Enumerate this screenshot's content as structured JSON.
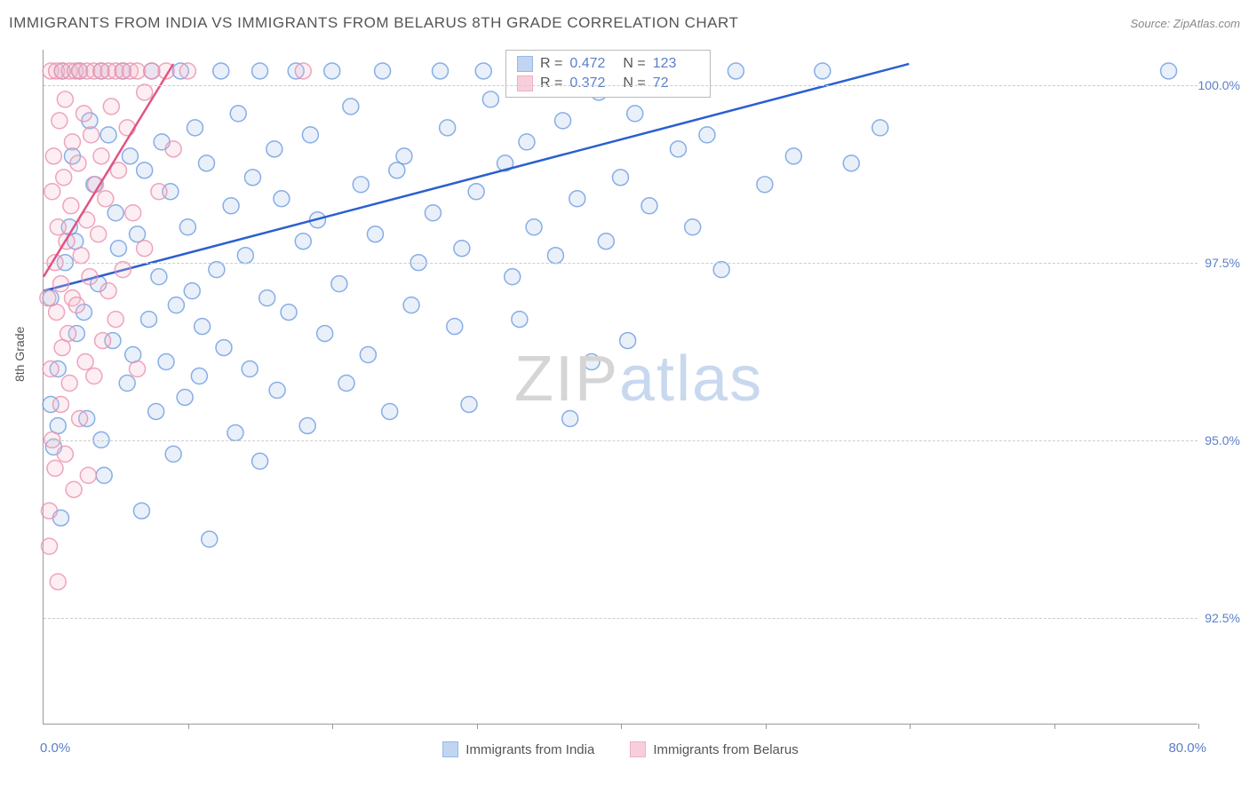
{
  "title": "IMMIGRANTS FROM INDIA VS IMMIGRANTS FROM BELARUS 8TH GRADE CORRELATION CHART",
  "source": "Source: ZipAtlas.com",
  "y_axis_label": "8th Grade",
  "watermark_zip": "ZIP",
  "watermark_atlas": "atlas",
  "chart": {
    "type": "scatter",
    "background_color": "#ffffff",
    "grid_color": "#cccccc",
    "axis_color": "#999999",
    "xlim": [
      0,
      80
    ],
    "ylim": [
      91.0,
      100.5
    ],
    "x_min_label": "0.0%",
    "x_max_label": "80.0%",
    "x_tick_positions": [
      0,
      10,
      20,
      30,
      40,
      50,
      60,
      70,
      80
    ],
    "y_ticks": [
      {
        "value": 92.5,
        "label": "92.5%"
      },
      {
        "value": 95.0,
        "label": "95.0%"
      },
      {
        "value": 97.5,
        "label": "97.5%"
      },
      {
        "value": 100.0,
        "label": "100.0%"
      }
    ],
    "marker_radius": 9,
    "marker_fill_opacity": 0.25,
    "marker_stroke_opacity": 0.8,
    "series": [
      {
        "name": "Immigrants from India",
        "color_fill": "#a8c4ec",
        "color_stroke": "#6b9be0",
        "trend_color": "#2a5fd0",
        "trend_width": 2.5,
        "trend": {
          "x1": 0,
          "y1": 97.1,
          "x2": 60,
          "y2": 100.3
        },
        "stats": {
          "R": "0.472",
          "N": "123"
        },
        "points": [
          [
            0.5,
            97.0
          ],
          [
            0.5,
            95.5
          ],
          [
            0.7,
            94.9
          ],
          [
            1.0,
            96.0
          ],
          [
            1.0,
            95.2
          ],
          [
            1.2,
            93.9
          ],
          [
            1.3,
            100.2
          ],
          [
            1.5,
            97.5
          ],
          [
            1.8,
            98.0
          ],
          [
            2.0,
            99.0
          ],
          [
            2.2,
            97.8
          ],
          [
            2.3,
            96.5
          ],
          [
            2.5,
            100.2
          ],
          [
            2.8,
            96.8
          ],
          [
            3.0,
            95.3
          ],
          [
            3.2,
            99.5
          ],
          [
            3.5,
            98.6
          ],
          [
            3.8,
            97.2
          ],
          [
            4.0,
            100.2
          ],
          [
            4.0,
            95.0
          ],
          [
            4.2,
            94.5
          ],
          [
            4.5,
            99.3
          ],
          [
            4.8,
            96.4
          ],
          [
            5.0,
            98.2
          ],
          [
            5.2,
            97.7
          ],
          [
            5.5,
            100.2
          ],
          [
            5.8,
            95.8
          ],
          [
            6.0,
            99.0
          ],
          [
            6.2,
            96.2
          ],
          [
            6.5,
            97.9
          ],
          [
            6.8,
            94.0
          ],
          [
            7.0,
            98.8
          ],
          [
            7.3,
            96.7
          ],
          [
            7.5,
            100.2
          ],
          [
            7.8,
            95.4
          ],
          [
            8.0,
            97.3
          ],
          [
            8.2,
            99.2
          ],
          [
            8.5,
            96.1
          ],
          [
            8.8,
            98.5
          ],
          [
            9.0,
            94.8
          ],
          [
            9.2,
            96.9
          ],
          [
            9.5,
            100.2
          ],
          [
            9.8,
            95.6
          ],
          [
            10.0,
            98.0
          ],
          [
            10.3,
            97.1
          ],
          [
            10.5,
            99.4
          ],
          [
            10.8,
            95.9
          ],
          [
            11.0,
            96.6
          ],
          [
            11.3,
            98.9
          ],
          [
            11.5,
            93.6
          ],
          [
            12.0,
            97.4
          ],
          [
            12.3,
            100.2
          ],
          [
            12.5,
            96.3
          ],
          [
            13.0,
            98.3
          ],
          [
            13.3,
            95.1
          ],
          [
            13.5,
            99.6
          ],
          [
            14.0,
            97.6
          ],
          [
            14.3,
            96.0
          ],
          [
            14.5,
            98.7
          ],
          [
            15.0,
            94.7
          ],
          [
            15.0,
            100.2
          ],
          [
            15.5,
            97.0
          ],
          [
            16.0,
            99.1
          ],
          [
            16.2,
            95.7
          ],
          [
            16.5,
            98.4
          ],
          [
            17.0,
            96.8
          ],
          [
            17.5,
            100.2
          ],
          [
            18.0,
            97.8
          ],
          [
            18.3,
            95.2
          ],
          [
            18.5,
            99.3
          ],
          [
            19.0,
            98.1
          ],
          [
            19.5,
            96.5
          ],
          [
            20.0,
            100.2
          ],
          [
            20.5,
            97.2
          ],
          [
            21.0,
            95.8
          ],
          [
            21.3,
            99.7
          ],
          [
            22.0,
            98.6
          ],
          [
            22.5,
            96.2
          ],
          [
            23.0,
            97.9
          ],
          [
            23.5,
            100.2
          ],
          [
            24.0,
            95.4
          ],
          [
            24.5,
            98.8
          ],
          [
            25.0,
            99.0
          ],
          [
            25.5,
            96.9
          ],
          [
            26.0,
            97.5
          ],
          [
            27.0,
            98.2
          ],
          [
            27.5,
            100.2
          ],
          [
            28.0,
            99.4
          ],
          [
            28.5,
            96.6
          ],
          [
            29.0,
            97.7
          ],
          [
            29.5,
            95.5
          ],
          [
            30.0,
            98.5
          ],
          [
            30.5,
            100.2
          ],
          [
            31.0,
            99.8
          ],
          [
            32.0,
            98.9
          ],
          [
            32.5,
            97.3
          ],
          [
            33.0,
            96.7
          ],
          [
            33.5,
            99.2
          ],
          [
            34.0,
            98.0
          ],
          [
            35.0,
            100.2
          ],
          [
            35.5,
            97.6
          ],
          [
            36.0,
            99.5
          ],
          [
            36.5,
            95.3
          ],
          [
            37.0,
            98.4
          ],
          [
            38.0,
            96.1
          ],
          [
            38.5,
            99.9
          ],
          [
            39.0,
            97.8
          ],
          [
            40.0,
            98.7
          ],
          [
            40.5,
            96.4
          ],
          [
            41.0,
            99.6
          ],
          [
            42.0,
            98.3
          ],
          [
            43.0,
            100.2
          ],
          [
            44.0,
            99.1
          ],
          [
            45.0,
            98.0
          ],
          [
            46.0,
            99.3
          ],
          [
            47.0,
            97.4
          ],
          [
            48.0,
            100.2
          ],
          [
            50.0,
            98.6
          ],
          [
            52.0,
            99.0
          ],
          [
            54.0,
            100.2
          ],
          [
            56.0,
            98.9
          ],
          [
            58.0,
            99.4
          ],
          [
            78.0,
            100.2
          ]
        ]
      },
      {
        "name": "Immigrants from Belarus",
        "color_fill": "#f5bccb",
        "color_stroke": "#ea90ac",
        "trend_color": "#e15384",
        "trend_width": 2.5,
        "trend": {
          "x1": 0,
          "y1": 97.3,
          "x2": 9,
          "y2": 100.3
        },
        "stats": {
          "R": "0.372",
          "N": "72"
        },
        "points": [
          [
            0.3,
            97.0
          ],
          [
            0.4,
            94.0
          ],
          [
            0.4,
            93.5
          ],
          [
            0.5,
            100.2
          ],
          [
            0.5,
            96.0
          ],
          [
            0.6,
            98.5
          ],
          [
            0.6,
            95.0
          ],
          [
            0.7,
            99.0
          ],
          [
            0.8,
            97.5
          ],
          [
            0.8,
            94.6
          ],
          [
            0.9,
            100.2
          ],
          [
            0.9,
            96.8
          ],
          [
            1.0,
            98.0
          ],
          [
            1.0,
            93.0
          ],
          [
            1.1,
            99.5
          ],
          [
            1.2,
            97.2
          ],
          [
            1.2,
            95.5
          ],
          [
            1.3,
            100.2
          ],
          [
            1.3,
            96.3
          ],
          [
            1.4,
            98.7
          ],
          [
            1.5,
            94.8
          ],
          [
            1.5,
            99.8
          ],
          [
            1.6,
            97.8
          ],
          [
            1.7,
            96.5
          ],
          [
            1.8,
            100.2
          ],
          [
            1.8,
            95.8
          ],
          [
            1.9,
            98.3
          ],
          [
            2.0,
            99.2
          ],
          [
            2.0,
            97.0
          ],
          [
            2.1,
            94.3
          ],
          [
            2.2,
            100.2
          ],
          [
            2.3,
            96.9
          ],
          [
            2.4,
            98.9
          ],
          [
            2.5,
            95.3
          ],
          [
            2.5,
            100.2
          ],
          [
            2.6,
            97.6
          ],
          [
            2.8,
            99.6
          ],
          [
            2.9,
            96.1
          ],
          [
            3.0,
            100.2
          ],
          [
            3.0,
            98.1
          ],
          [
            3.1,
            94.5
          ],
          [
            3.2,
            97.3
          ],
          [
            3.3,
            99.3
          ],
          [
            3.5,
            100.2
          ],
          [
            3.5,
            95.9
          ],
          [
            3.6,
            98.6
          ],
          [
            3.8,
            97.9
          ],
          [
            4.0,
            100.2
          ],
          [
            4.0,
            99.0
          ],
          [
            4.1,
            96.4
          ],
          [
            4.3,
            98.4
          ],
          [
            4.5,
            100.2
          ],
          [
            4.5,
            97.1
          ],
          [
            4.7,
            99.7
          ],
          [
            5.0,
            100.2
          ],
          [
            5.0,
            96.7
          ],
          [
            5.2,
            98.8
          ],
          [
            5.5,
            100.2
          ],
          [
            5.5,
            97.4
          ],
          [
            5.8,
            99.4
          ],
          [
            6.0,
            100.2
          ],
          [
            6.2,
            98.2
          ],
          [
            6.5,
            100.2
          ],
          [
            6.5,
            96.0
          ],
          [
            7.0,
            99.9
          ],
          [
            7.0,
            97.7
          ],
          [
            7.5,
            100.2
          ],
          [
            8.0,
            98.5
          ],
          [
            8.5,
            100.2
          ],
          [
            9.0,
            99.1
          ],
          [
            10.0,
            100.2
          ],
          [
            18.0,
            100.2
          ]
        ]
      }
    ],
    "legend": {
      "series1_label": "Immigrants from India",
      "series2_label": "Immigrants from Belarus"
    }
  }
}
